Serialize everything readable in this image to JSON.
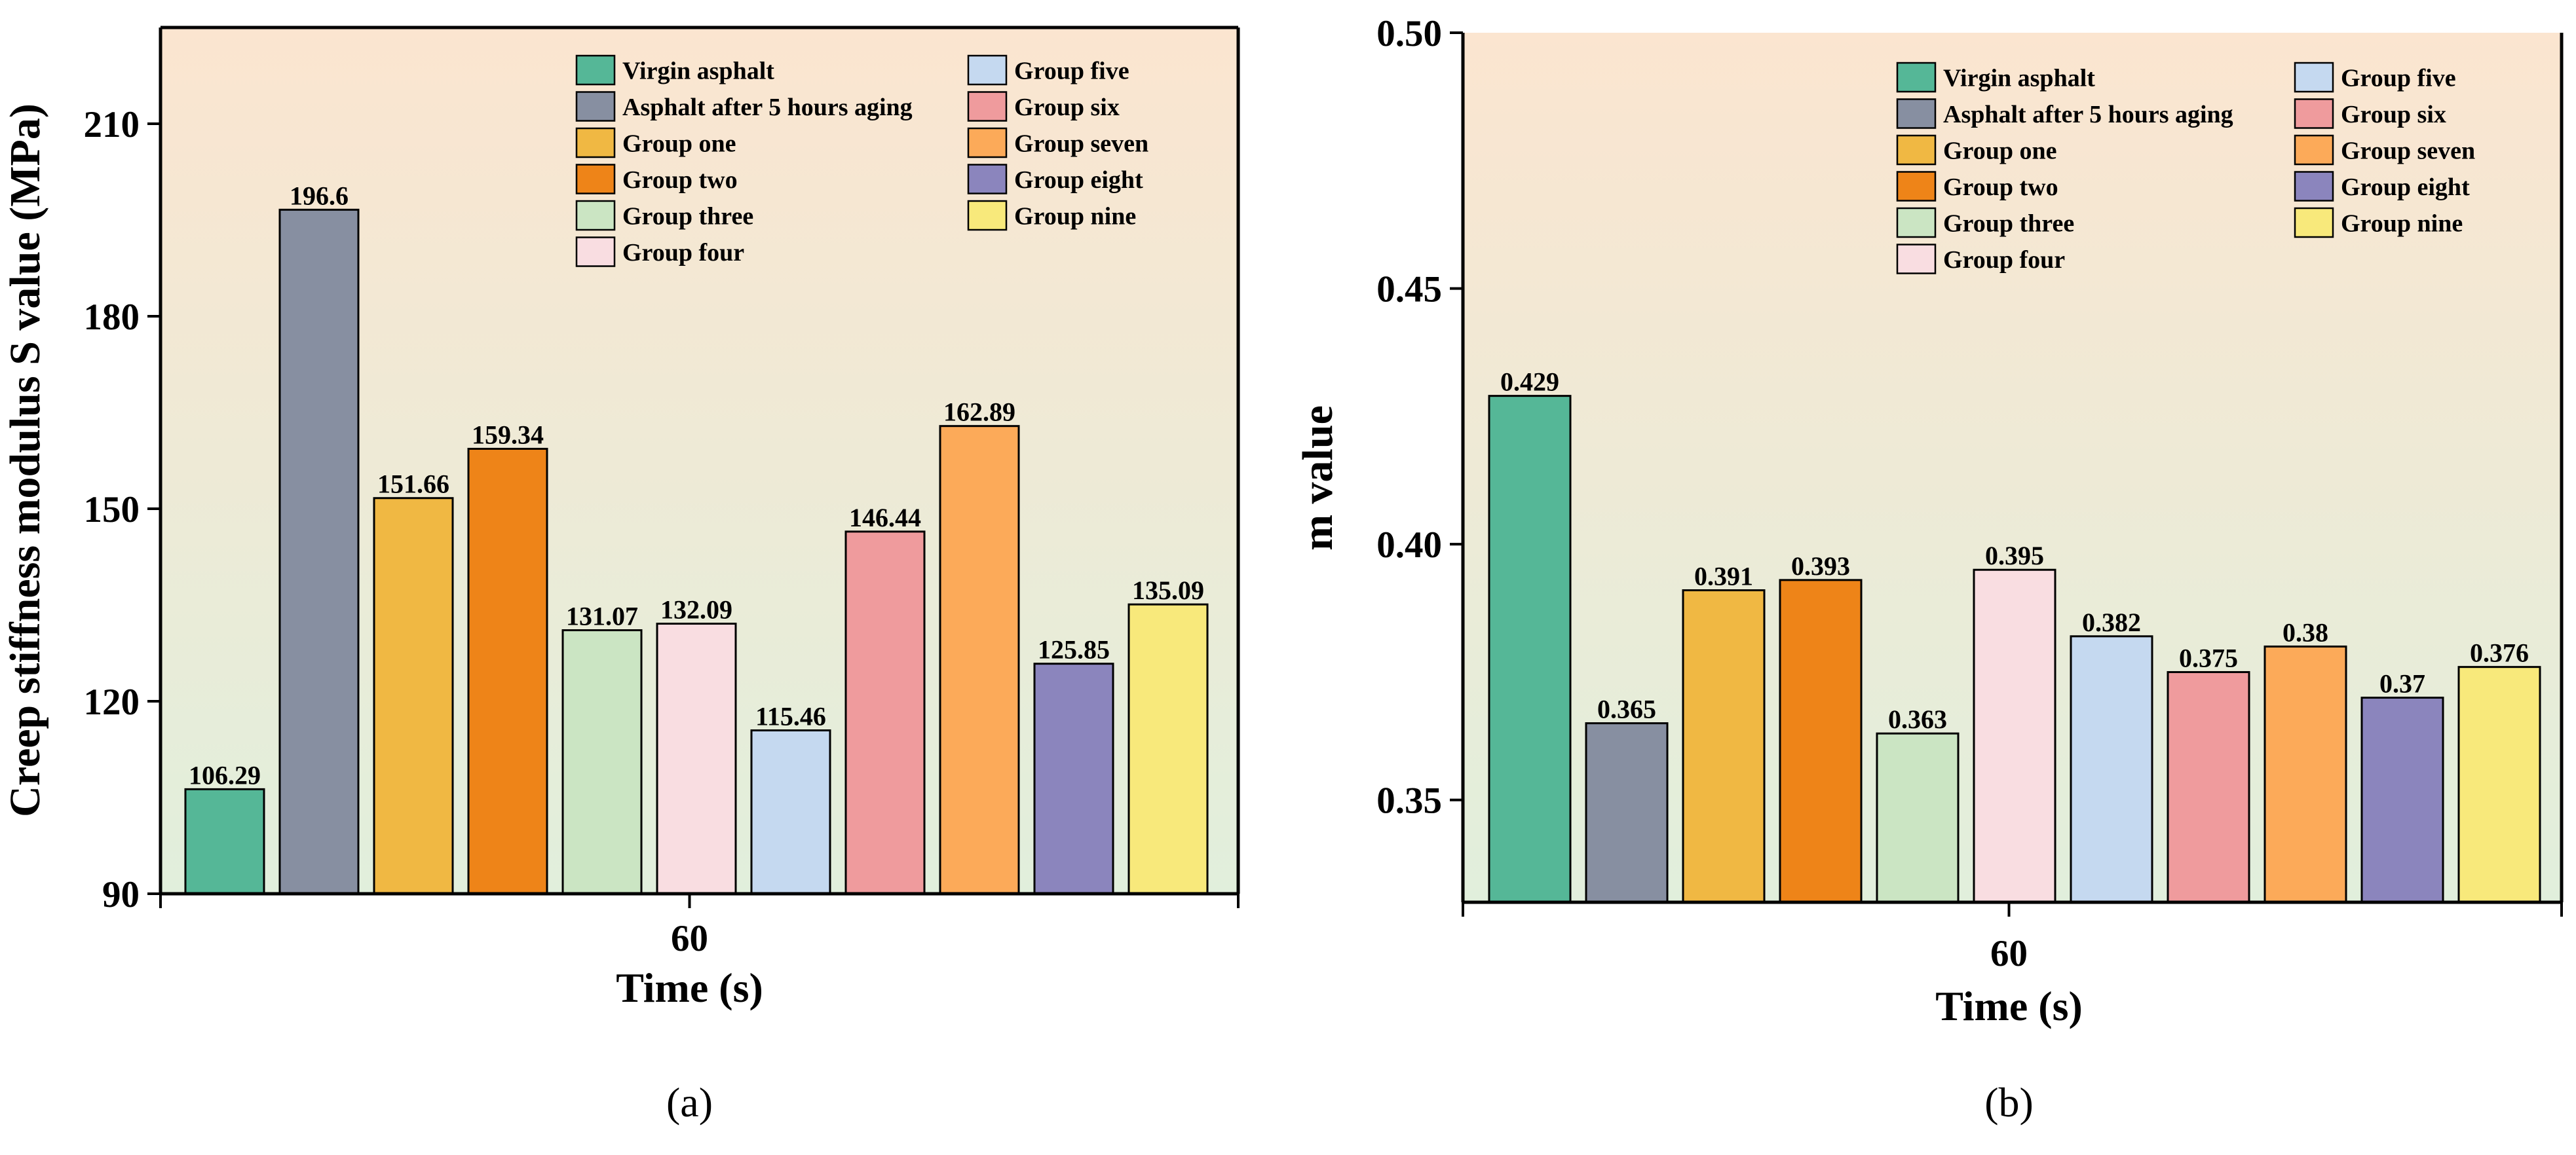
{
  "series_colors": {
    "Virgin asphalt": "#55b797",
    "Asphalt after 5 hours aging": "#878fa1",
    "Group one": "#f0b843",
    "Group two": "#ee8418",
    "Group three": "#cbe5c3",
    "Group four": "#f9dde1",
    "Group five": "#c5d9f0",
    "Group six": "#ef9b9d",
    "Group seven": "#fcaa59",
    "Group eight": "#8b85bd",
    "Group nine": "#f8e97b"
  },
  "background_gradient": {
    "top": "#fbe5d0",
    "bottom": "#e1efdc"
  },
  "chart_data": [
    {
      "type": "bar",
      "panel_label": "(a)",
      "categories": [
        "60"
      ],
      "series": [
        {
          "name": "Virgin asphalt",
          "values": [
            106.29
          ],
          "label": "106.29"
        },
        {
          "name": "Asphalt after 5 hours aging",
          "values": [
            196.6
          ],
          "label": "196.6"
        },
        {
          "name": "Group one",
          "values": [
            151.66
          ],
          "label": "151.66"
        },
        {
          "name": "Group two",
          "values": [
            159.34
          ],
          "label": "159.34"
        },
        {
          "name": "Group three",
          "values": [
            131.07
          ],
          "label": "131.07"
        },
        {
          "name": "Group four",
          "values": [
            132.09
          ],
          "label": "132.09"
        },
        {
          "name": "Group five",
          "values": [
            115.46
          ],
          "label": "115.46"
        },
        {
          "name": "Group six",
          "values": [
            146.44
          ],
          "label": "146.44"
        },
        {
          "name": "Group seven",
          "values": [
            162.89
          ],
          "label": "162.89"
        },
        {
          "name": "Group eight",
          "values": [
            125.85
          ],
          "label": "125.85"
        },
        {
          "name": "Group nine",
          "values": [
            135.09
          ],
          "label": "135.09"
        }
      ],
      "xlabel": "Time (s)",
      "ylabel": "Creep stiffness modulus S value (MPa)",
      "ylim": [
        90,
        225
      ],
      "yticks": [
        90,
        120,
        150,
        180,
        210
      ],
      "ytick_labels": [
        "90",
        "120",
        "150",
        "180",
        "210"
      ],
      "legend_position": "top-right",
      "grid": false
    },
    {
      "type": "bar",
      "panel_label": "(b)",
      "categories": [
        "60"
      ],
      "series": [
        {
          "name": "Virgin asphalt",
          "values": [
            0.429
          ],
          "label": "0.429"
        },
        {
          "name": "Asphalt after 5 hours aging",
          "values": [
            0.365
          ],
          "label": "0.365"
        },
        {
          "name": "Group one",
          "values": [
            0.391
          ],
          "label": "0.391"
        },
        {
          "name": "Group two",
          "values": [
            0.393
          ],
          "label": "0.393"
        },
        {
          "name": "Group three",
          "values": [
            0.363
          ],
          "label": "0.363"
        },
        {
          "name": "Group four",
          "values": [
            0.395
          ],
          "label": "0.395"
        },
        {
          "name": "Group five",
          "values": [
            0.382
          ],
          "label": "0.382"
        },
        {
          "name": "Group six",
          "values": [
            0.375
          ],
          "label": "0.375"
        },
        {
          "name": "Group seven",
          "values": [
            0.38
          ],
          "label": "0.38"
        },
        {
          "name": "Group eight",
          "values": [
            0.37
          ],
          "label": "0.37"
        },
        {
          "name": "Group nine",
          "values": [
            0.376
          ],
          "label": "0.376"
        }
      ],
      "xlabel": "Time (s)",
      "ylabel": "m value",
      "ylim": [
        0.33,
        0.5
      ],
      "yticks": [
        0.35,
        0.4,
        0.45,
        0.5
      ],
      "ytick_labels": [
        "0.35",
        "0.40",
        "0.45",
        "0.50"
      ],
      "legend_position": "top-right",
      "grid": false
    }
  ]
}
